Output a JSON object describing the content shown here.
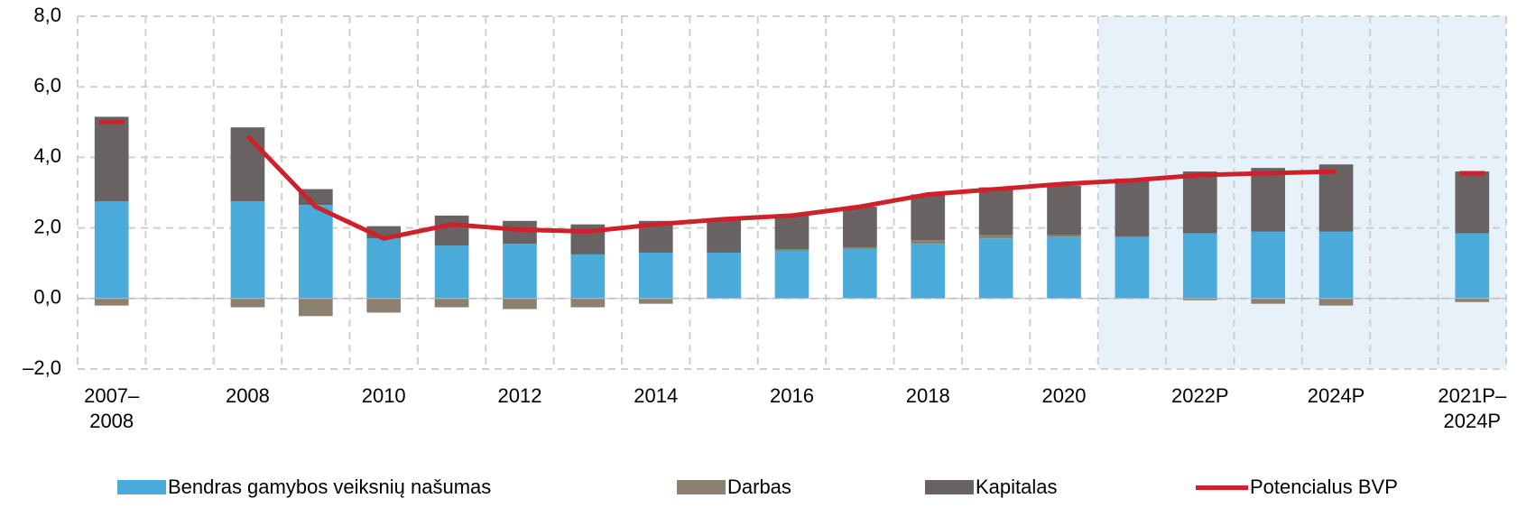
{
  "chart_data": {
    "type": "stacked_bar_line",
    "categories": [
      "2007–2008",
      null,
      "2008",
      null,
      "2010",
      null,
      "2012",
      null,
      "2014",
      null,
      "2016",
      null,
      "2018",
      null,
      "2020",
      null,
      "2022P",
      null,
      "2024P",
      null,
      "2021P–2024P"
    ],
    "series": [
      {
        "name": "Bendras gamybos veiksnių našumas",
        "color": "#4aabdb",
        "kind": "bar",
        "values": [
          2.75,
          null,
          2.75,
          2.65,
          1.7,
          1.5,
          1.55,
          1.25,
          1.3,
          1.3,
          1.35,
          1.4,
          1.55,
          1.7,
          1.75,
          1.75,
          1.85,
          1.9,
          1.9,
          null,
          1.85
        ]
      },
      {
        "name": "Darbas",
        "color": "#8c8070",
        "kind": "bar",
        "values": [
          -0.2,
          null,
          -0.25,
          -0.5,
          -0.4,
          -0.25,
          -0.3,
          -0.25,
          -0.15,
          0,
          0.05,
          0.05,
          0.1,
          0.1,
          0.05,
          0,
          -0.05,
          -0.15,
          -0.2,
          null,
          -0.1
        ]
      },
      {
        "name": "Kapitalas",
        "color": "#686262",
        "kind": "bar",
        "values": [
          2.4,
          null,
          2.1,
          0.45,
          0.35,
          0.85,
          0.65,
          0.85,
          0.9,
          0.95,
          0.95,
          1.15,
          1.3,
          1.35,
          1.4,
          1.65,
          1.75,
          1.8,
          1.9,
          null,
          1.75
        ]
      },
      {
        "name": "Potencialus BVP",
        "color": "#d0202a",
        "kind": "line",
        "values": [
          5.0,
          null,
          4.6,
          2.6,
          1.7,
          2.1,
          1.95,
          1.9,
          2.1,
          2.25,
          2.35,
          2.6,
          2.95,
          3.1,
          3.25,
          3.35,
          3.5,
          3.55,
          3.6,
          null,
          3.55
        ]
      }
    ],
    "ylim": [
      -2,
      8
    ],
    "yticks": [
      {
        "value": -2,
        "label": "–2,0"
      },
      {
        "value": 0,
        "label": "0,0"
      },
      {
        "value": 2,
        "label": "2,0"
      },
      {
        "value": 4,
        "label": "4,0"
      },
      {
        "value": 6,
        "label": "6,0"
      },
      {
        "value": 8,
        "label": "8,0"
      }
    ],
    "grid": true,
    "legend": "bottom"
  }
}
